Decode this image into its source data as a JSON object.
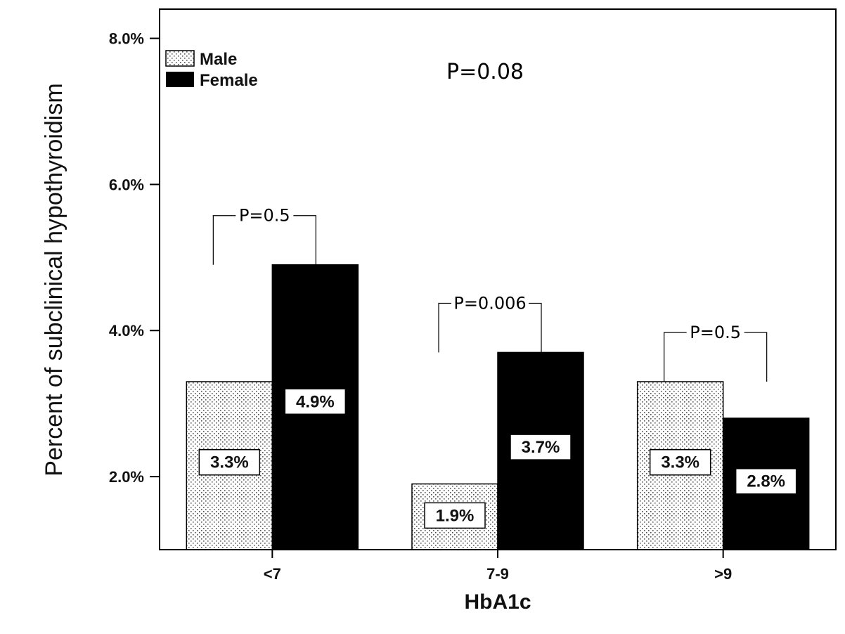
{
  "chart_data": {
    "type": "bar",
    "title": "",
    "xlabel": "HbA1c",
    "ylabel": "Percent of subclinical hypothyroidism",
    "categories": [
      "<7",
      "7-9",
      ">9"
    ],
    "series": [
      {
        "name": "Male",
        "values": [
          3.3,
          1.9,
          3.3
        ],
        "labels": [
          "3.3%",
          "1.9%",
          "3.3%"
        ],
        "pattern": "dotted",
        "color": "#ffffff"
      },
      {
        "name": "Female",
        "values": [
          4.9,
          3.7,
          2.8
        ],
        "labels": [
          "4.9%",
          "3.7%",
          "2.8%"
        ],
        "pattern": "solid",
        "color": "#000000"
      }
    ],
    "ylim": [
      1.0,
      8.4
    ],
    "yticks": [
      2.0,
      4.0,
      6.0,
      8.0
    ],
    "ytick_labels": [
      "2.0%",
      "4.0%",
      "6.0%",
      "8.0%"
    ],
    "grid": false,
    "legend": "top-left",
    "overall_annotation": "P=0.08",
    "pair_annotations": [
      "P=0.5",
      "P=0.006",
      "P=0.5"
    ]
  }
}
